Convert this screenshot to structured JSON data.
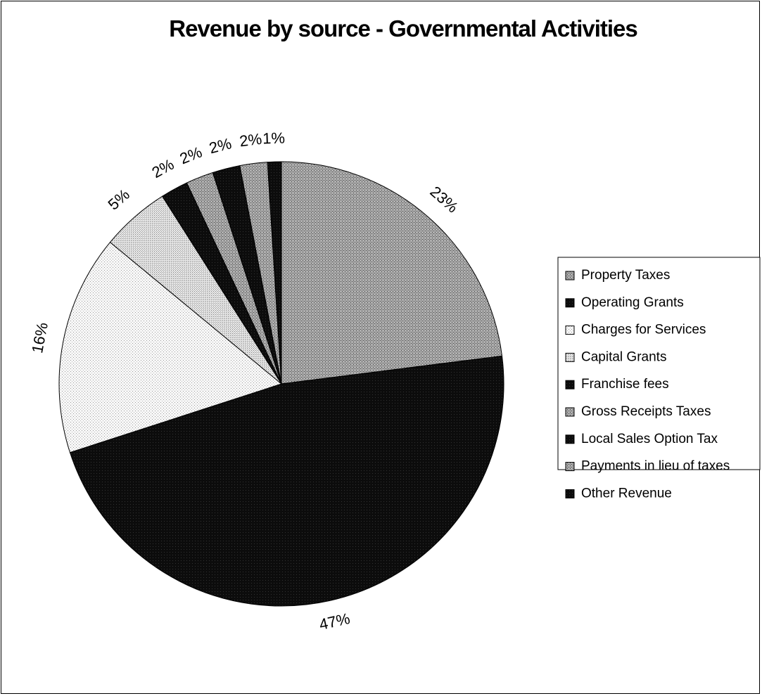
{
  "chart_data": {
    "type": "pie",
    "title": "Revenue by source - Governmental Activities",
    "legend_position": "right",
    "series": [
      {
        "name": "Property Taxes",
        "value": 23,
        "label": "23%",
        "color": "#9a9a9a",
        "fill": "dots-dark"
      },
      {
        "name": "Operating Grants",
        "value": 47,
        "label": "47%",
        "color": "#111111",
        "fill": "solid-black"
      },
      {
        "name": "Charges for Services",
        "value": 16,
        "label": "16%",
        "color": "#f4f4f4",
        "fill": "dots-light"
      },
      {
        "name": "Capital Grants",
        "value": 5,
        "label": "5%",
        "color": "#dcdcdc",
        "fill": "dots-mid"
      },
      {
        "name": "Franchise fees",
        "value": 2,
        "label": "2%",
        "color": "#111111",
        "fill": "solid-black"
      },
      {
        "name": "Gross Receipts Taxes",
        "value": 2,
        "label": "2%",
        "color": "#777777",
        "fill": "dots-dark"
      },
      {
        "name": "Local Sales Option Tax",
        "value": 2,
        "label": "2%",
        "color": "#111111",
        "fill": "solid-black"
      },
      {
        "name": "Payments in lieu of taxes",
        "value": 2,
        "label": "2%",
        "color": "#9a9a9a",
        "fill": "dots-dark"
      },
      {
        "name": "Other Revenue",
        "value": 1,
        "label": "1%",
        "color": "#111111",
        "fill": "solid-black"
      }
    ]
  }
}
